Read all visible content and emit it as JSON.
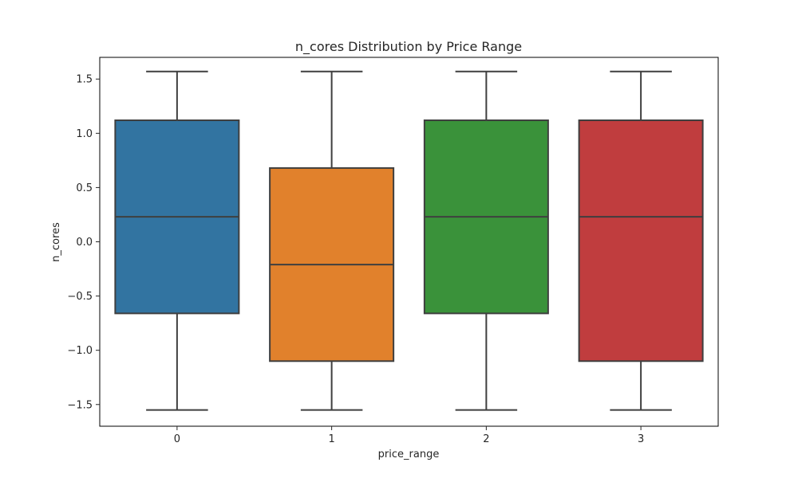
{
  "chart_data": {
    "type": "box",
    "title": "n_cores Distribution by Price Range",
    "xlabel": "price_range",
    "ylabel": "n_cores",
    "categories": [
      "0",
      "1",
      "2",
      "3"
    ],
    "ylim": [
      -1.7,
      1.7
    ],
    "yticks": [
      -1.5,
      -1.0,
      -0.5,
      0.0,
      0.5,
      1.0,
      1.5
    ],
    "ytick_labels": [
      "−1.5",
      "−1.0",
      "−0.5",
      "0.0",
      "0.5",
      "1.0",
      "1.5"
    ],
    "boxes": [
      {
        "category": "0",
        "whisker_low": -1.55,
        "q1": -0.66,
        "median": 0.23,
        "q3": 1.12,
        "whisker_high": 1.57,
        "color": "#3274a1"
      },
      {
        "category": "1",
        "whisker_low": -1.55,
        "q1": -1.1,
        "median": -0.21,
        "q3": 0.68,
        "whisker_high": 1.57,
        "color": "#e1812c"
      },
      {
        "category": "2",
        "whisker_low": -1.55,
        "q1": -0.66,
        "median": 0.23,
        "q3": 1.12,
        "whisker_high": 1.57,
        "color": "#3a923a"
      },
      {
        "category": "3",
        "whisker_low": -1.55,
        "q1": -1.1,
        "median": 0.23,
        "q3": 1.12,
        "whisker_high": 1.57,
        "color": "#c03d3e"
      }
    ],
    "line_color": "#3f3f3f",
    "grid": false,
    "legend": "none"
  }
}
